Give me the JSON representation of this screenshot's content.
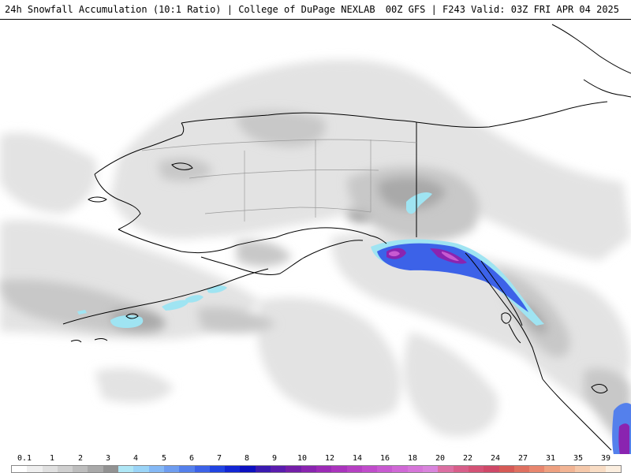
{
  "header": {
    "title_left": "24h Snowfall Accumulation (10:1 Ratio) | College of DuPage NEXLAB",
    "title_right": "00Z GFS | F243 Valid: 03Z FRI APR 04 2025"
  },
  "legend": {
    "labels": [
      "0.1",
      "1",
      "2",
      "3",
      "4",
      "5",
      "6",
      "7",
      "8",
      "9",
      "10",
      "12",
      "14",
      "16",
      "18",
      "20",
      "22",
      "24",
      "27",
      "31",
      "35",
      "39"
    ],
    "colors": [
      "#ffffff",
      "#efefef",
      "#e0e0e0",
      "#cfcfcf",
      "#bdbdbd",
      "#a9a9a9",
      "#929292",
      "#aee6f5",
      "#9ad4f7",
      "#84b8f5",
      "#6e9df0",
      "#5480ec",
      "#3c62e8",
      "#2044e2",
      "#1226d4",
      "#0c10c0",
      "#3a1ab0",
      "#5a1cae",
      "#741ea8",
      "#8a24b0",
      "#9c2ab6",
      "#aa34bd",
      "#b640c3",
      "#c04ccb",
      "#c85ad1",
      "#d068d6",
      "#d676d9",
      "#d984dc",
      "#dc6fa2",
      "#d85e8a",
      "#d45276",
      "#cf4868",
      "#d65a56",
      "#df7060",
      "#e8866e",
      "#eea080",
      "#f2b494",
      "#f5c8aa",
      "#f8dcc4",
      "#fbeedf"
    ]
  }
}
